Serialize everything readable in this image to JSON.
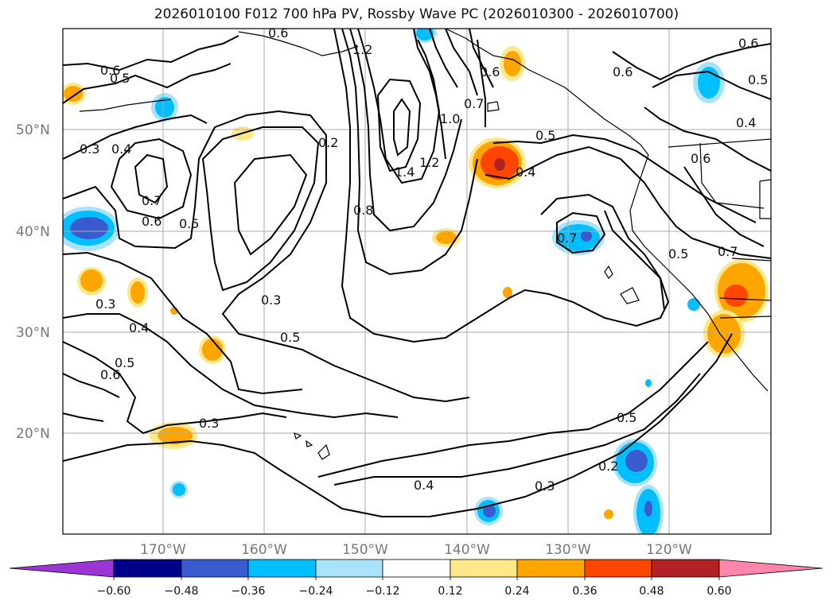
{
  "title": "2026010100 F012 700 hPa PV, Rossby Wave PC (2026010300 - 2026010700)",
  "colors": {
    "neg_lavender": "#9b35d6",
    "neg_navy": "#00008b",
    "neg_royal": "#3a5bd0",
    "neg_sky": "#00bfff",
    "neg_pale": "#a9e2fb",
    "neutral": "#ffffff",
    "pos_yellow": "#ffe88a",
    "pos_orange": "#ffa500",
    "pos_redorange": "#ff4500",
    "pos_firebrick": "#b22222",
    "pos_pink": "#ff85aa"
  },
  "lat_labels": [
    "50°N",
    "40°N",
    "30°N",
    "20°N"
  ],
  "lon_labels": [
    "170°W",
    "160°W",
    "150°W",
    "140°W",
    "130°W",
    "120°W"
  ],
  "colorbar": {
    "ticks": [
      "−0.60",
      "−0.48",
      "−0.36",
      "−0.24",
      "−0.12",
      "0.12",
      "0.24",
      "0.36",
      "0.48",
      "0.60"
    ]
  },
  "contour_labels": [
    "0.6",
    "0.5",
    "0.3",
    "0.4",
    "0.7",
    "0.6",
    "0.5",
    "1.2",
    "0.2",
    "0.8",
    "1.4",
    "1.2",
    "1.0",
    "0.7",
    "0.6",
    "0.5",
    "0.4",
    "0.6",
    "0.5",
    "0.6",
    "0.4",
    "0.6",
    "0.7",
    "0.5",
    "0.7",
    "0.3",
    "0.4",
    "0.6",
    "0.5",
    "0.3",
    "0.5",
    "0.3",
    "0.4",
    "0.3",
    "0.5",
    "0.2",
    "0.6"
  ]
}
